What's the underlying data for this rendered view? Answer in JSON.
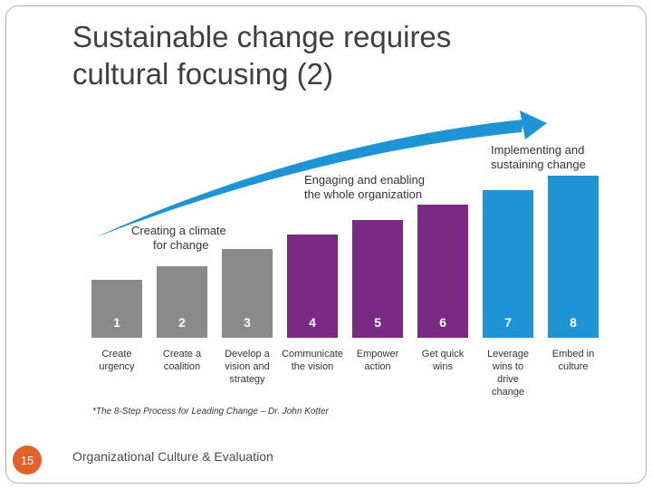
{
  "slide": {
    "title_lines": [
      "Sustainable change requires",
      "cultural focusing  (2)"
    ],
    "page_number": "15",
    "footer": "Organizational Culture & Evaluation"
  },
  "diagram": {
    "phases": [
      {
        "lines": [
          "Creating a climate",
          "for change"
        ],
        "color": "#8a8a8a"
      },
      {
        "lines": [
          "Engaging and enabling",
          "the whole organization"
        ],
        "color": "#7a2a82"
      },
      {
        "lines": [
          "Implementing and",
          "sustaining change"
        ],
        "color": "#1f94d4"
      }
    ],
    "steps": [
      {
        "number": "1",
        "phase": 0,
        "label": [
          "Create",
          "urgency"
        ]
      },
      {
        "number": "2",
        "phase": 0,
        "label": [
          "Create a",
          "coalition"
        ]
      },
      {
        "number": "3",
        "phase": 0,
        "label": [
          "Develop a",
          "vision and",
          "strategy"
        ]
      },
      {
        "number": "4",
        "phase": 1,
        "label": [
          "Communicate",
          "the vision"
        ]
      },
      {
        "number": "5",
        "phase": 1,
        "label": [
          "Empower",
          "action"
        ]
      },
      {
        "number": "6",
        "phase": 1,
        "label": [
          "Get quick",
          "wins"
        ]
      },
      {
        "number": "7",
        "phase": 2,
        "label": [
          "Leverage",
          "wins to",
          "drive",
          "change"
        ]
      },
      {
        "number": "8",
        "phase": 2,
        "label": [
          "Embed in",
          "culture"
        ]
      }
    ],
    "source_note": "*The 8-Step Process for Leading Change – Dr. John Kotter",
    "arrow_color": "#1f94d4"
  }
}
